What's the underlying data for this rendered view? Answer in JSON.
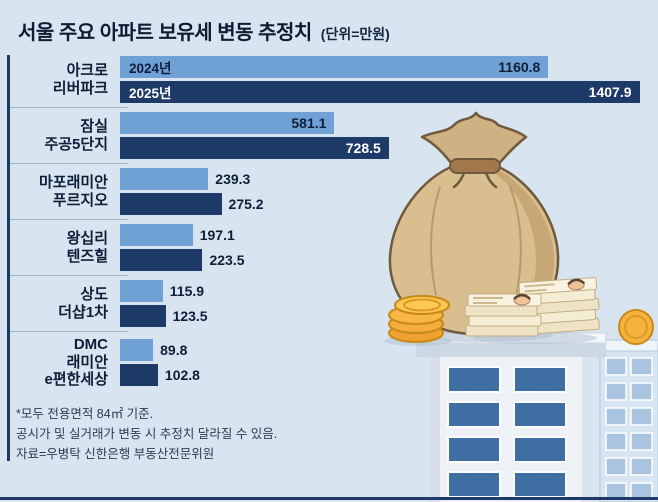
{
  "title": "서울 주요 아파트 보유세 변동 추정치",
  "unit_label": "(단위=만원)",
  "colors": {
    "background": "#d8e4f0",
    "bar_2024": "#6fa0d6",
    "bar_2025": "#1e3a68",
    "accent_navy": "#1e3a68",
    "text_dark": "#0f1e38",
    "coin_gold": "#f5b23f",
    "bag_tan": "#d9be90"
  },
  "chart_data": {
    "type": "bar",
    "orientation": "horizontal",
    "title": "서울 주요 아파트 보유세 변동 추정치",
    "unit": "만원",
    "xlim": [
      0,
      1450
    ],
    "grid": false,
    "legend_position": "inline-first-group-bars",
    "categories": [
      "아크로 리버파크",
      "잠실 주공5단지",
      "마포래미안 푸르지오",
      "왕십리 텐즈힐",
      "상도 더샵1차",
      "DMC 래미안 e편한세상"
    ],
    "series": [
      {
        "name": "2024년",
        "values": [
          1160.8,
          581.1,
          239.3,
          197.1,
          115.9,
          89.8
        ]
      },
      {
        "name": "2025년",
        "values": [
          1407.9,
          728.5,
          275.2,
          223.5,
          123.5,
          102.8
        ]
      }
    ]
  },
  "row_labels": [
    [
      "아크로",
      "리버파크"
    ],
    [
      "잠실",
      "주공5단지"
    ],
    [
      "마포래미안",
      "푸르지오"
    ],
    [
      "왕십리",
      "텐즈힐"
    ],
    [
      "상도",
      "더샵1차"
    ],
    [
      "DMC",
      "래미안",
      "e편한세상"
    ]
  ],
  "footnotes": [
    "*모두 전용면적 84㎡ 기준.",
    "공시가 및 실거래가 변동 시 추정치 달라질 수 있음.",
    "자료=우병탁 신한은행 부동산전문위원"
  ]
}
